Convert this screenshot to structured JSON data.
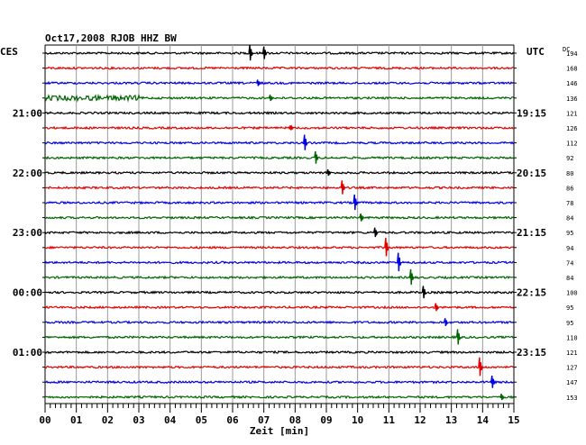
{
  "chart_data": {
    "type": "line",
    "title": "Oct17,2008  RJOB HHZ BW",
    "left_axis_label": "CES",
    "right_axis_label": "UTC",
    "dc_label": "DC",
    "xlabel": "Zeit [min]",
    "xlim": [
      0,
      15
    ],
    "x_tick_labels": [
      "00",
      "01",
      "02",
      "03",
      "04",
      "05",
      "06",
      "07",
      "08",
      "09",
      "10",
      "11",
      "12",
      "13",
      "14",
      "15"
    ],
    "left_time_labels": [
      {
        "trace": 4,
        "text": "21:00"
      },
      {
        "trace": 8,
        "text": "22:00"
      },
      {
        "trace": 12,
        "text": "23:00"
      },
      {
        "trace": 16,
        "text": "00:00"
      },
      {
        "trace": 20,
        "text": "01:00"
      }
    ],
    "right_time_labels": [
      {
        "trace": 4,
        "text": "19:15"
      },
      {
        "trace": 8,
        "text": "20:15"
      },
      {
        "trace": 12,
        "text": "21:15"
      },
      {
        "trace": 16,
        "text": "22:15"
      },
      {
        "trace": 20,
        "text": "23:15"
      }
    ],
    "trace_colors": [
      "#000000",
      "#e00000",
      "#0000e0",
      "#006400"
    ],
    "dc_offsets": [
      194,
      168,
      146,
      136,
      121,
      126,
      112,
      92,
      80,
      86,
      78,
      84,
      95,
      94,
      74,
      84,
      100,
      95,
      95,
      110,
      121,
      127,
      147,
      153
    ],
    "events": [
      {
        "trace": 0,
        "minute": 6.55,
        "amp": 1.0
      },
      {
        "trace": 0,
        "minute": 7.0,
        "amp": 0.8
      },
      {
        "trace": 2,
        "minute": 6.8,
        "amp": 0.4
      },
      {
        "trace": 3,
        "minute": 7.2,
        "amp": 0.4
      },
      {
        "trace": 5,
        "minute": 7.85,
        "amp": 0.3
      },
      {
        "trace": 6,
        "minute": 8.3,
        "amp": 1.0
      },
      {
        "trace": 7,
        "minute": 8.65,
        "amp": 0.8
      },
      {
        "trace": 8,
        "minute": 9.05,
        "amp": 0.4
      },
      {
        "trace": 9,
        "minute": 9.5,
        "amp": 0.9
      },
      {
        "trace": 10,
        "minute": 9.9,
        "amp": 1.0
      },
      {
        "trace": 11,
        "minute": 10.1,
        "amp": 0.5
      },
      {
        "trace": 12,
        "minute": 10.55,
        "amp": 0.6
      },
      {
        "trace": 13,
        "minute": 10.9,
        "amp": 1.2
      },
      {
        "trace": 14,
        "minute": 11.3,
        "amp": 1.2
      },
      {
        "trace": 15,
        "minute": 11.7,
        "amp": 1.0
      },
      {
        "trace": 16,
        "minute": 12.1,
        "amp": 0.8
      },
      {
        "trace": 17,
        "minute": 12.5,
        "amp": 0.5
      },
      {
        "trace": 18,
        "minute": 12.8,
        "amp": 0.5
      },
      {
        "trace": 19,
        "minute": 13.2,
        "amp": 1.0
      },
      {
        "trace": 21,
        "minute": 13.9,
        "amp": 1.2
      },
      {
        "trace": 22,
        "minute": 14.3,
        "amp": 0.8
      },
      {
        "trace": 23,
        "minute": 14.6,
        "amp": 0.4
      }
    ],
    "grid": true
  }
}
